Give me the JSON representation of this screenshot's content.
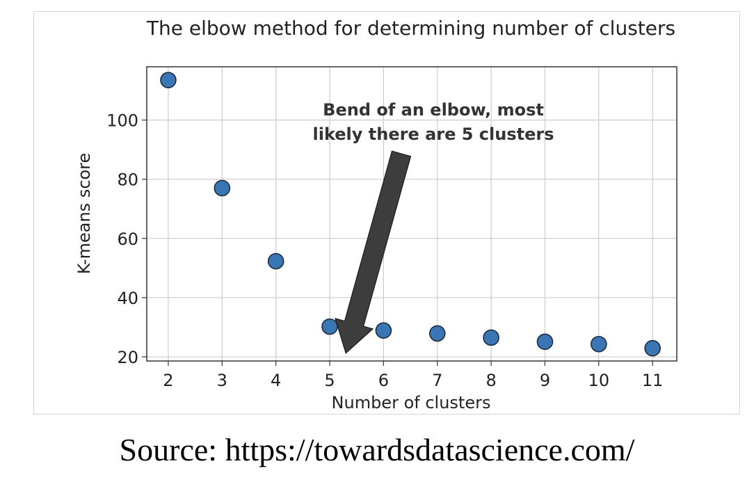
{
  "chart_data": {
    "type": "scatter",
    "title": "The elbow method for determining number of clusters",
    "xlabel": "Number of clusters",
    "ylabel": "K-means score",
    "x": [
      2,
      3,
      4,
      5,
      6,
      7,
      8,
      9,
      10,
      11
    ],
    "y": [
      113.5,
      77,
      52.3,
      30.2,
      28.9,
      27.9,
      26.5,
      25.1,
      24.3,
      22.9
    ],
    "xlim": [
      1.6,
      11.45
    ],
    "ylim": [
      18.6,
      118
    ],
    "xticks": [
      "2",
      "3",
      "4",
      "5",
      "6",
      "7",
      "8",
      "9",
      "10",
      "11"
    ],
    "yticks": [
      "20",
      "40",
      "60",
      "80",
      "100"
    ],
    "ytick_values": [
      20,
      40,
      60,
      80,
      100
    ],
    "grid": true,
    "marker_color": "#3a75b4",
    "marker_edge_color": "#1d2a3a",
    "annotation": {
      "lines": [
        "Bend of an elbow, most",
        "likely there are 5 clusters"
      ],
      "arrow_color": "#3d3d3d",
      "arrow_target_x": 5.3
    }
  },
  "caption": "Source: https://towardsdatascience.com/"
}
